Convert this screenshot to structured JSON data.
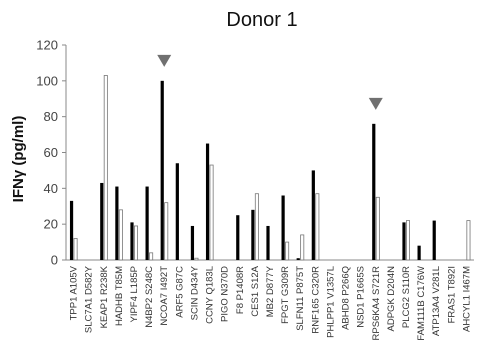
{
  "chart_data": {
    "type": "bar",
    "title": "Donor 1",
    "ylabel": "IFNγ (pg/ml)",
    "xlabel": "",
    "ylim": [
      0,
      120
    ],
    "yticks": [
      0,
      20,
      40,
      60,
      80,
      100,
      120
    ],
    "grid": false,
    "legend": "none",
    "categories": [
      "TPP1 A105V",
      "SLC7A1 D582Y",
      "KEAP1 R238K",
      "HADHB T85M",
      "YIPF4 L185P",
      "N4BP2 S248C",
      "NCOA7 I492T",
      "ARF5 G87C",
      "SCIN D434Y",
      "CCNY Q183L",
      "PIGO N370D",
      "F8 P1408R",
      "CES1 S12A",
      "MB2 D877Y",
      "FPGT G309R",
      "SLFN11 P875T",
      "RNF165 C320R",
      "PHLPP1 V1357L",
      "ABHD8 P266Q",
      "NSD1 P1665S",
      "RPS6KA4 S721R",
      "ADPGK D204N",
      "PLCG2 S110R",
      "FAM111B C176W",
      "ATP13A4 V281L",
      "FRAS1 T892I",
      "AHCYL1 I467M"
    ],
    "series": [
      {
        "values": [
          33,
          0,
          43,
          41,
          21,
          41,
          100,
          54,
          19,
          65,
          0,
          25,
          28,
          19,
          36,
          1,
          50,
          0,
          0,
          0,
          76,
          0,
          21,
          8,
          22,
          0,
          0
        ],
        "color": "#000000"
      },
      {
        "values": [
          12,
          0,
          103,
          28,
          19,
          4,
          32,
          0,
          1,
          53,
          0,
          0,
          37,
          0,
          10,
          14,
          37,
          0,
          0,
          0,
          35,
          0,
          22,
          0,
          0,
          0,
          22
        ],
        "color": "#ffffff"
      }
    ],
    "annotations": [
      {
        "type": "arrowhead",
        "category": "NCOA7 I492T",
        "color": "#707070"
      },
      {
        "type": "arrowhead",
        "category": "RPS6KA4 S721R",
        "color": "#707070"
      }
    ]
  }
}
